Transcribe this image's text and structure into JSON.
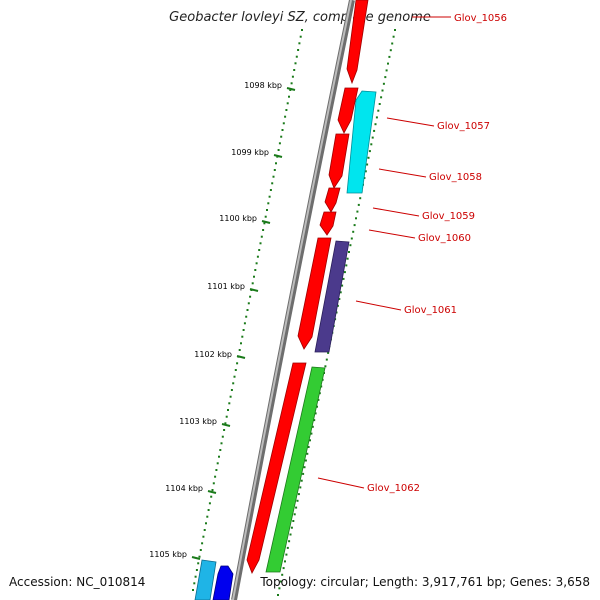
{
  "title": "Geobacter lovleyi SZ, complete genome",
  "accession_text": "Accession: NC_010814",
  "topology_text": "Topology: circular; Length: 3,917,761 bp; Genes: 3,658",
  "kbp_labels": [
    "1098 kbp",
    "1099 kbp",
    "1100 kbp",
    "1101 kbp",
    "1102 kbp",
    "1103 kbp",
    "1104 kbp",
    "1105 kbp"
  ],
  "gene_labels": [
    "Glov_1056",
    "Glov_1057",
    "Glov_1058",
    "Glov_1059",
    "Glov_1060",
    "Glov_1061",
    "Glov_1062"
  ],
  "colors": {
    "backbone": "#888888",
    "tick": "#1a7a1a",
    "gene_red": "#ff0000",
    "gene_cyan": "#00e5ee",
    "gene_purple": "#4b3a8c",
    "gene_green": "#33cc33",
    "gene_blue": "#0000ee",
    "gene_lightblue": "#1fb4e6",
    "label_red": "#cc0000"
  }
}
